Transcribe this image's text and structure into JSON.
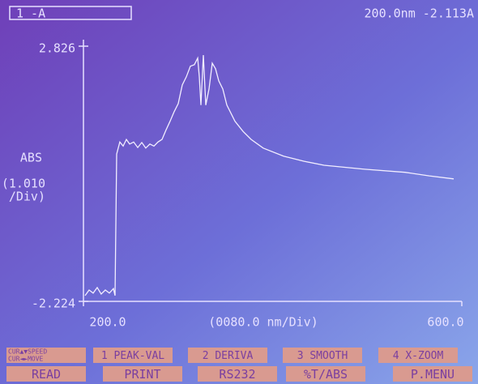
{
  "header": {
    "channel": "1 -A",
    "cursor": "200.0nm -2.113A"
  },
  "chart_data": {
    "type": "line",
    "ylabel": [
      "ABS",
      "(1.010",
      "/Div)"
    ],
    "xlabel": "(0080.0 nm/Div)",
    "xlim": [
      200,
      600
    ],
    "ylim": [
      -2.224,
      2.826
    ],
    "xticks": [
      {
        "value": 200,
        "label": "200.0"
      },
      {
        "value": 600,
        "label": "600.0"
      }
    ],
    "yticks": [
      -2.224,
      2.826
    ],
    "color": "#f2eeff",
    "x": [
      201.7,
      206.0,
      210.3,
      214.6,
      218.8,
      223.1,
      227.4,
      231.7,
      233.4,
      235.1,
      238.5,
      242.0,
      245.4,
      248.8,
      253.1,
      257.4,
      261.7,
      265.9,
      270.2,
      274.5,
      278.8,
      283.1,
      287.4,
      291.6,
      295.9,
      300.2,
      304.5,
      308.8,
      313.1,
      317.3,
      320.8,
      322.5,
      324.2,
      326.8,
      329.3,
      332.8,
      336.2,
      339.6,
      343.0,
      347.3,
      351.6,
      360.2,
      368.7,
      377.3,
      390.1,
      411.6,
      433.0,
      454.4,
      497.2,
      540.0,
      565.7,
      591.4
    ],
    "values": [
      -2.11,
      -2.0,
      -2.06,
      -1.95,
      -2.08,
      -2.0,
      -2.06,
      -1.97,
      -2.11,
      0.69,
      0.93,
      0.85,
      0.98,
      0.89,
      0.93,
      0.82,
      0.92,
      0.81,
      0.89,
      0.85,
      0.93,
      0.98,
      1.17,
      1.34,
      1.53,
      1.69,
      2.06,
      2.22,
      2.43,
      2.46,
      2.59,
      2.22,
      1.66,
      2.65,
      1.66,
      1.98,
      2.49,
      2.38,
      2.14,
      1.98,
      1.66,
      1.34,
      1.14,
      0.98,
      0.81,
      0.65,
      0.55,
      0.47,
      0.39,
      0.33,
      0.26,
      0.2
    ]
  },
  "buttons": {
    "cursor_speed": "CUR▲▼SPEED",
    "cursor_move": "CUR◄►MOVE",
    "function_row": [
      "1 PEAK-VAL",
      "2 DERIVA",
      "3 SMOOTH",
      "4 X-ZOOM"
    ],
    "bottom_row": [
      "READ",
      "PRINT",
      "RS232",
      "%T/ABS",
      "P.MENU"
    ]
  }
}
